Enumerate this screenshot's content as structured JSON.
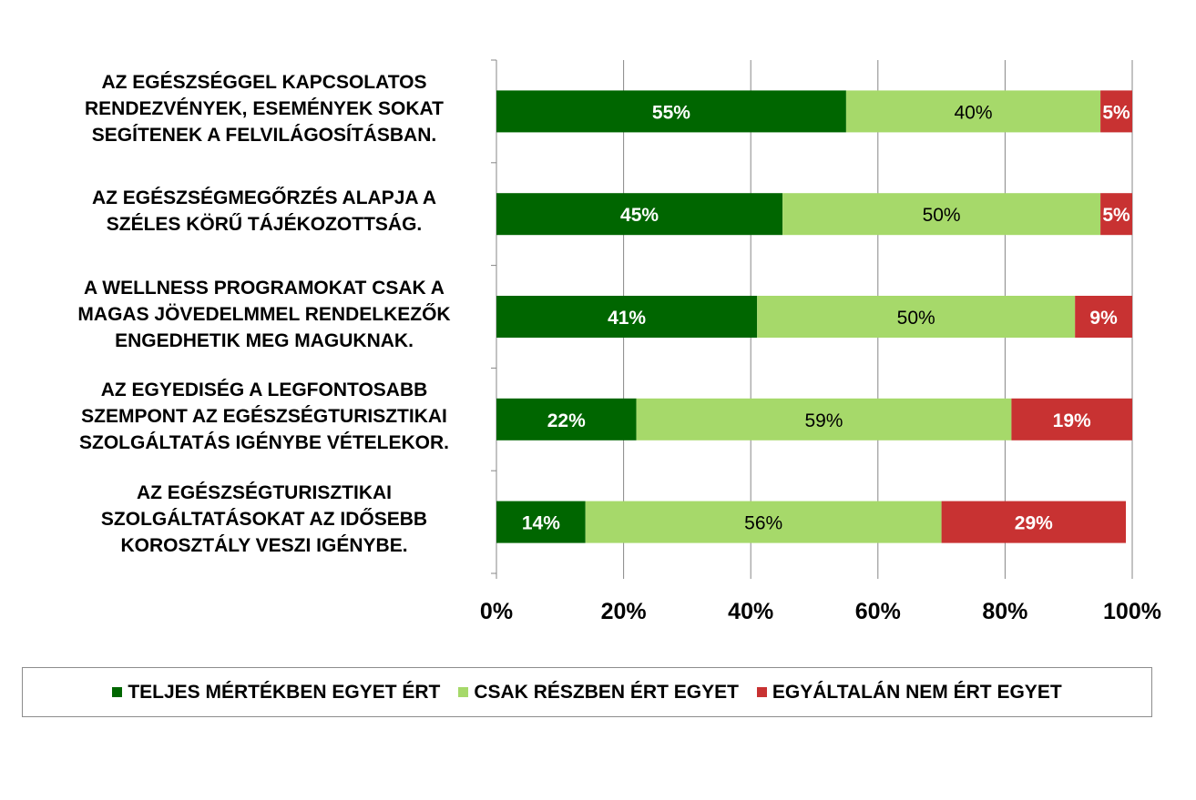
{
  "chart_data": {
    "type": "bar",
    "orientation": "horizontal",
    "stacked": "percent",
    "categories": [
      "AZ EGÉSZSÉGGEL KAPCSOLATOS\nRENDEZVÉNYEK, ESEMÉNYEK SOKAT\nSEGÍTENEK A FELVILÁGOSÍTÁSBAN.",
      "AZ EGÉSZSÉGMEGŐRZÉS ALAPJA A\nSZÉLES KÖRŰ TÁJÉKOZOTTSÁG.",
      "A WELLNESS PROGRAMOKAT CSAK A\nMAGAS JÖVEDELMMEL RENDELKEZŐK\nENGEDHETIK MEG MAGUKNAK.",
      "AZ EGYEDISÉG A LEGFONTOSABB\nSZEMPONT AZ EGÉSZSÉGTURISZTIKAI\nSZOLGÁLTATÁS IGÉNYBE VÉTELEKOR.",
      "AZ EGÉSZSÉGTURISZTIKAI\nSZOLGÁLTATÁSOKAT AZ IDŐSEBB\nKOROSZTÁLY VESZI IGÉNYBE."
    ],
    "series": [
      {
        "name": "TELJES MÉRTÉKBEN EGYET ÉRT",
        "color": "#006600",
        "label_color": "#ffffff",
        "values": [
          55,
          45,
          41,
          22,
          14
        ],
        "labels": [
          "55%",
          "45%",
          "41%",
          "22%",
          "14%"
        ]
      },
      {
        "name": "CSAK RÉSZBEN ÉRT EGYET",
        "color": "#a6d96a",
        "label_color": "#000000",
        "values": [
          40,
          50,
          50,
          59,
          56
        ],
        "labels": [
          "40%",
          "50%",
          "50%",
          "59%",
          "56%"
        ]
      },
      {
        "name": "EGYÁLTALÁN NEM ÉRT EGYET",
        "color": "#c83232",
        "label_color": "#ffffff",
        "values": [
          5,
          5,
          9,
          19,
          29
        ],
        "labels": [
          "5%",
          "5%",
          "9%",
          "19%",
          "29%"
        ]
      }
    ],
    "xlim": [
      0,
      100
    ],
    "xticks": [
      "0%",
      "20%",
      "40%",
      "60%",
      "80%",
      "100%"
    ],
    "grid": true,
    "legend_position": "bottom"
  }
}
